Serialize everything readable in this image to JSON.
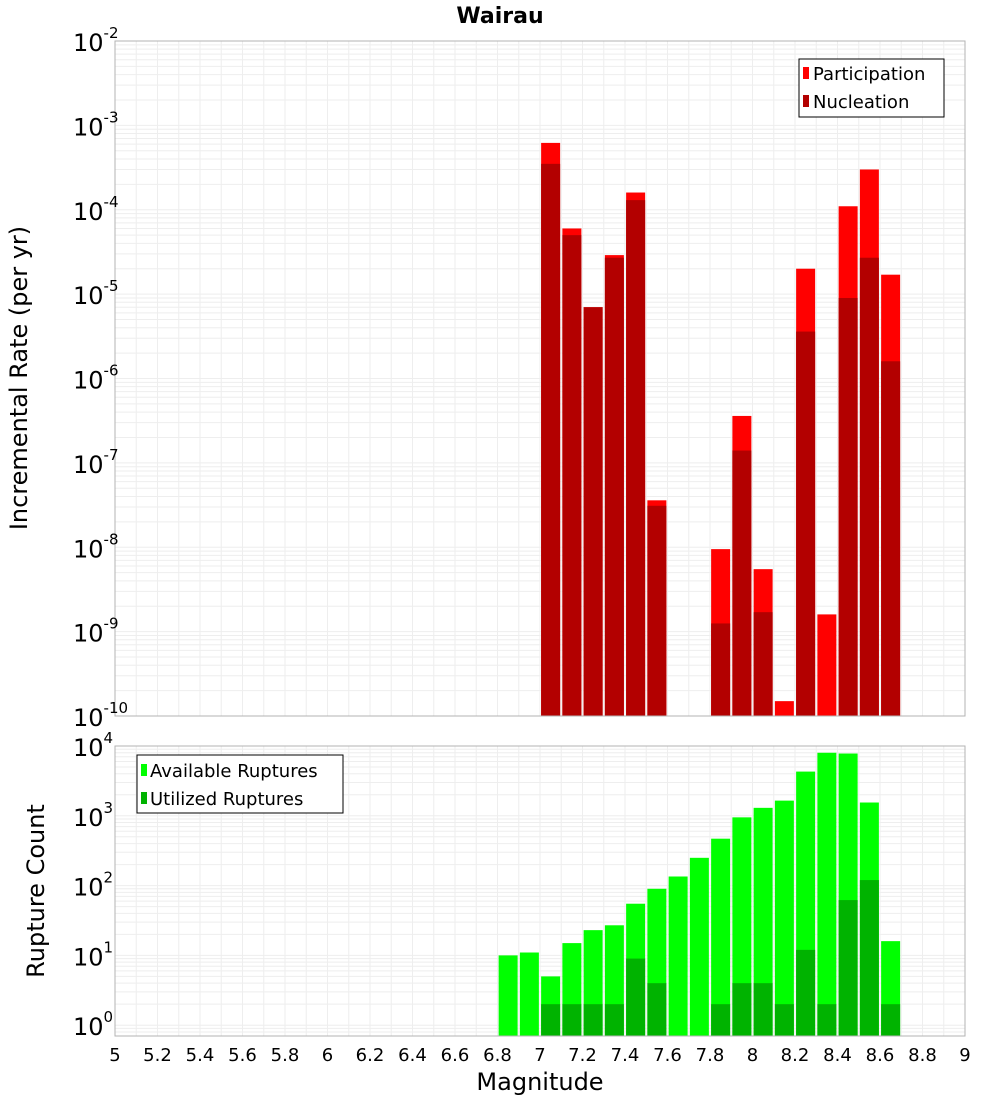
{
  "title": "Wairau",
  "colors": {
    "participation": "#ff0000",
    "nucleation": "#b30000",
    "available": "#00ff00",
    "utilized": "#00b300",
    "grid": "#eeeeee",
    "frame": "#b3b3b3"
  },
  "chart_data": [
    {
      "type": "bar",
      "subtype": "overlaid-bars",
      "title": "Wairau",
      "xlabel": "Magnitude",
      "ylabel": "Incremental Rate (per yr)",
      "xscale": "linear",
      "yscale": "log",
      "xlim": [
        5,
        9
      ],
      "ylim": [
        1e-10,
        0.01
      ],
      "grid": true,
      "legend_position": "top-right",
      "y_ticks": [
        {
          "value": 1e-10,
          "base": "10",
          "exp": "-10"
        },
        {
          "value": 1e-09,
          "base": "10",
          "exp": "-9"
        },
        {
          "value": 1e-08,
          "base": "10",
          "exp": "-8"
        },
        {
          "value": 1e-07,
          "base": "10",
          "exp": "-7"
        },
        {
          "value": 1e-06,
          "base": "10",
          "exp": "-6"
        },
        {
          "value": 1e-05,
          "base": "10",
          "exp": "-5"
        },
        {
          "value": 0.0001,
          "base": "10",
          "exp": "-4"
        },
        {
          "value": 0.001,
          "base": "10",
          "exp": "-3"
        },
        {
          "value": 0.01,
          "base": "10",
          "exp": "-2"
        }
      ],
      "series": [
        {
          "name": "Participation",
          "color": "#ff0000",
          "points": [
            {
              "x": 7.05,
              "y": 0.00062
            },
            {
              "x": 7.15,
              "y": 6e-05
            },
            {
              "x": 7.25,
              "y": 7e-06
            },
            {
              "x": 7.35,
              "y": 2.9e-05
            },
            {
              "x": 7.45,
              "y": 0.00016
            },
            {
              "x": 7.55,
              "y": 3.6e-08
            },
            {
              "x": 7.85,
              "y": 9.5e-09
            },
            {
              "x": 7.95,
              "y": 3.6e-07
            },
            {
              "x": 8.05,
              "y": 5.5e-09
            },
            {
              "x": 8.15,
              "y": 1.5e-10
            },
            {
              "x": 8.25,
              "y": 2e-05
            },
            {
              "x": 8.35,
              "y": 1.6e-09
            },
            {
              "x": 8.45,
              "y": 0.00011
            },
            {
              "x": 8.55,
              "y": 0.0003
            },
            {
              "x": 8.65,
              "y": 1.7e-05
            }
          ]
        },
        {
          "name": "Nucleation",
          "color": "#b30000",
          "points": [
            {
              "x": 7.05,
              "y": 0.00035
            },
            {
              "x": 7.15,
              "y": 5e-05
            },
            {
              "x": 7.25,
              "y": 7e-06
            },
            {
              "x": 7.35,
              "y": 2.7e-05
            },
            {
              "x": 7.45,
              "y": 0.00013
            },
            {
              "x": 7.55,
              "y": 3.1e-08
            },
            {
              "x": 7.85,
              "y": 1.25e-09
            },
            {
              "x": 7.95,
              "y": 1.4e-07
            },
            {
              "x": 8.05,
              "y": 1.7e-09
            },
            {
              "x": 8.25,
              "y": 3.6e-06
            },
            {
              "x": 8.45,
              "y": 9e-06
            },
            {
              "x": 8.55,
              "y": 2.7e-05
            },
            {
              "x": 8.65,
              "y": 1.6e-06
            }
          ]
        }
      ]
    },
    {
      "type": "bar",
      "subtype": "overlaid-bars",
      "xlabel": "Magnitude",
      "ylabel": "Rupture Count",
      "xscale": "linear",
      "yscale": "log",
      "xlim": [
        5,
        9
      ],
      "ylim": [
        0.7,
        10000
      ],
      "grid": true,
      "legend_position": "top-left",
      "x_ticks": [
        "5",
        "5.2",
        "5.4",
        "5.6",
        "5.8",
        "6",
        "6.2",
        "6.4",
        "6.6",
        "6.8",
        "7",
        "7.2",
        "7.4",
        "7.6",
        "7.8",
        "8",
        "8.2",
        "8.4",
        "8.6",
        "8.8",
        "9"
      ],
      "y_ticks": [
        {
          "value": 1,
          "base": "10",
          "exp": "0"
        },
        {
          "value": 10,
          "base": "10",
          "exp": "1"
        },
        {
          "value": 100,
          "base": "10",
          "exp": "2"
        },
        {
          "value": 1000,
          "base": "10",
          "exp": "3"
        },
        {
          "value": 10000,
          "base": "10",
          "exp": "4"
        }
      ],
      "series": [
        {
          "name": "Available Ruptures",
          "color": "#00ff00",
          "points": [
            {
              "x": 6.85,
              "y": 10
            },
            {
              "x": 6.95,
              "y": 11
            },
            {
              "x": 7.05,
              "y": 5
            },
            {
              "x": 7.15,
              "y": 15
            },
            {
              "x": 7.25,
              "y": 23
            },
            {
              "x": 7.35,
              "y": 27
            },
            {
              "x": 7.45,
              "y": 55
            },
            {
              "x": 7.55,
              "y": 90
            },
            {
              "x": 7.65,
              "y": 135
            },
            {
              "x": 7.75,
              "y": 250
            },
            {
              "x": 7.85,
              "y": 470
            },
            {
              "x": 7.95,
              "y": 950
            },
            {
              "x": 8.05,
              "y": 1300
            },
            {
              "x": 8.15,
              "y": 1650
            },
            {
              "x": 8.25,
              "y": 4300
            },
            {
              "x": 8.35,
              "y": 8000
            },
            {
              "x": 8.45,
              "y": 7800
            },
            {
              "x": 8.55,
              "y": 1550
            },
            {
              "x": 8.65,
              "y": 16
            }
          ]
        },
        {
          "name": "Utilized Ruptures",
          "color": "#00b300",
          "points": [
            {
              "x": 7.05,
              "y": 2
            },
            {
              "x": 7.15,
              "y": 2
            },
            {
              "x": 7.25,
              "y": 2
            },
            {
              "x": 7.35,
              "y": 2
            },
            {
              "x": 7.45,
              "y": 9
            },
            {
              "x": 7.55,
              "y": 4
            },
            {
              "x": 7.85,
              "y": 2
            },
            {
              "x": 7.95,
              "y": 4
            },
            {
              "x": 8.05,
              "y": 4
            },
            {
              "x": 8.15,
              "y": 2
            },
            {
              "x": 8.25,
              "y": 12
            },
            {
              "x": 8.35,
              "y": 2
            },
            {
              "x": 8.45,
              "y": 62
            },
            {
              "x": 8.55,
              "y": 120
            },
            {
              "x": 8.65,
              "y": 2
            }
          ]
        }
      ]
    }
  ]
}
